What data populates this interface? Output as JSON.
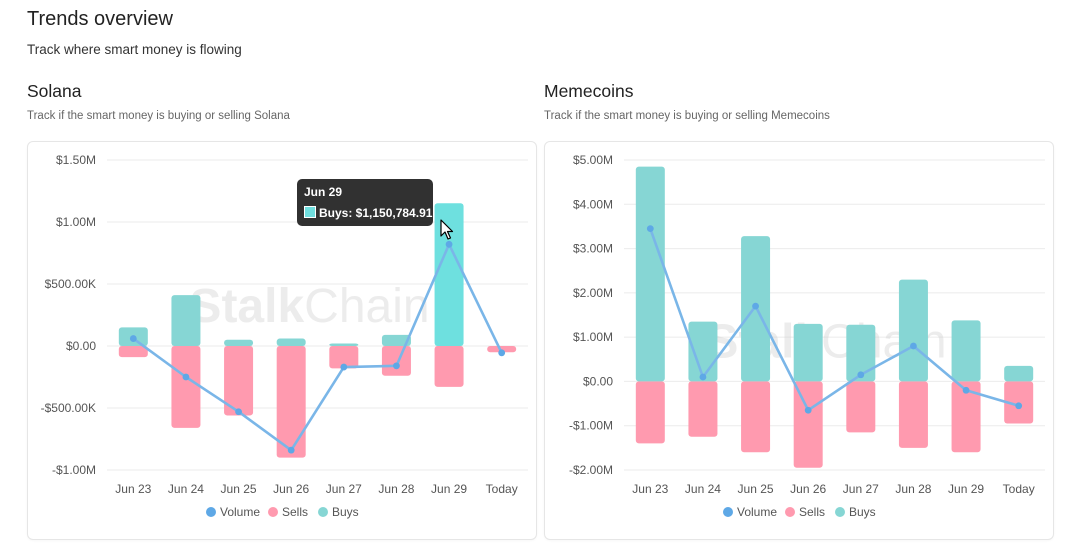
{
  "page": {
    "title": "Trends overview",
    "subtitle": "Track where smart money is flowing"
  },
  "sections": [
    {
      "title": "Solana",
      "description": "Track if the smart money is buying or selling Solana"
    },
    {
      "title": "Memecoins",
      "description": "Track if the smart money is buying or selling Memecoins"
    }
  ],
  "watermark": {
    "part1": "Stalk",
    "part2": "Chain"
  },
  "tooltip": {
    "title": "Jun 29",
    "label": "Buys: $1,150,784.91",
    "swatch_color": "#71dfdf"
  },
  "colors": {
    "volume": "#7ab6e8",
    "volume_dot": "#5ea8e6",
    "sells": "#ff9aaf",
    "buys": "#86d6d4",
    "buys_highlight": "#6ee0df",
    "grid": "#ebebeb"
  },
  "chart_data": [
    {
      "type": "bar",
      "name": "solana",
      "categories": [
        "Jun 23",
        "Jun 24",
        "Jun 25",
        "Jun 26",
        "Jun 27",
        "Jun 28",
        "Jun 29",
        "Today"
      ],
      "ylim": [
        -1000000,
        1500000
      ],
      "yticks": [
        {
          "value": 1500000,
          "label": "$1.50M"
        },
        {
          "value": 1000000,
          "label": "$1.00M"
        },
        {
          "value": 500000,
          "label": "$500.00K"
        },
        {
          "value": 0,
          "label": "$0.00"
        },
        {
          "value": -500000,
          "label": "-$500.00K"
        },
        {
          "value": -1000000,
          "label": "-$1.00M"
        }
      ],
      "highlight_index": 6,
      "series": [
        {
          "name": "Sells",
          "type": "bar",
          "values": [
            -90000,
            -660000,
            -560000,
            -900000,
            -180000,
            -240000,
            -330000,
            -50000
          ]
        },
        {
          "name": "Buys",
          "type": "bar",
          "values": [
            150000,
            410000,
            50000,
            60000,
            20000,
            90000,
            1150784.91,
            0
          ]
        },
        {
          "name": "Volume",
          "type": "line",
          "values": [
            60000,
            -250000,
            -530000,
            -840000,
            -170000,
            -160000,
            820000,
            -55000
          ]
        }
      ],
      "legend": [
        "Volume",
        "Sells",
        "Buys"
      ],
      "legend_position": "bottom"
    },
    {
      "type": "bar",
      "name": "memecoins",
      "categories": [
        "Jun 23",
        "Jun 24",
        "Jun 25",
        "Jun 26",
        "Jun 27",
        "Jun 28",
        "Jun 29",
        "Today"
      ],
      "ylim": [
        -2000000,
        5000000
      ],
      "yticks": [
        {
          "value": 5000000,
          "label": "$5.00M"
        },
        {
          "value": 4000000,
          "label": "$4.00M"
        },
        {
          "value": 3000000,
          "label": "$3.00M"
        },
        {
          "value": 2000000,
          "label": "$2.00M"
        },
        {
          "value": 1000000,
          "label": "$1.00M"
        },
        {
          "value": 0,
          "label": "$0.00"
        },
        {
          "value": -1000000,
          "label": "-$1.00M"
        },
        {
          "value": -2000000,
          "label": "-$2.00M"
        }
      ],
      "highlight_index": -1,
      "series": [
        {
          "name": "Sells",
          "type": "bar",
          "values": [
            -1400000,
            -1250000,
            -1600000,
            -1950000,
            -1150000,
            -1500000,
            -1600000,
            -950000
          ]
        },
        {
          "name": "Buys",
          "type": "bar",
          "values": [
            4850000,
            1350000,
            3280000,
            1300000,
            1280000,
            2300000,
            1380000,
            350000
          ]
        },
        {
          "name": "Volume",
          "type": "line",
          "values": [
            3450000,
            100000,
            1700000,
            -650000,
            150000,
            800000,
            -200000,
            -550000
          ]
        }
      ],
      "legend": [
        "Volume",
        "Sells",
        "Buys"
      ],
      "legend_position": "bottom"
    }
  ]
}
